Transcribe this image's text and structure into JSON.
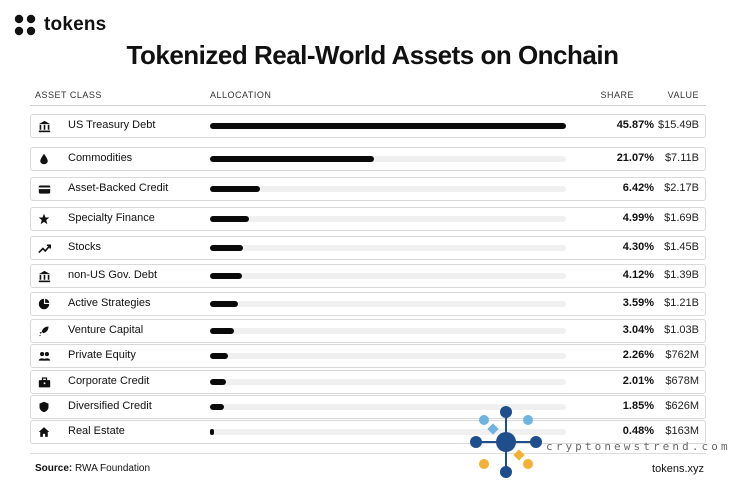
{
  "brand": {
    "name": "tokens"
  },
  "title": "Tokenized Real-World Assets on Onchain",
  "headers": {
    "asset_class": "ASSET CLASS",
    "allocation": "ALLOCATION",
    "share": "SHARE",
    "value": "VALUE"
  },
  "chart_data": {
    "type": "bar",
    "orientation": "horizontal",
    "categories": [
      "US Treasury Debt",
      "Commodities",
      "Asset-Backed Credit",
      "Specialty Finance",
      "Stocks",
      "non-US Gov. Debt",
      "Active Strategies",
      "Venture Capital",
      "Private Equity",
      "Corporate Credit",
      "Diversified Credit",
      "Real Estate"
    ],
    "values": [
      45.87,
      21.07,
      6.42,
      4.99,
      4.3,
      4.12,
      3.59,
      3.04,
      2.26,
      2.01,
      1.85,
      0.48
    ],
    "share_labels": [
      "45.87%",
      "21.07%",
      "6.42%",
      "4.99%",
      "4.30%",
      "4.12%",
      "3.59%",
      "3.04%",
      "2.26%",
      "2.01%",
      "1.85%",
      "0.48%"
    ],
    "value_labels": [
      "$15.49B",
      "$7.11B",
      "$2.17B",
      "$1.69B",
      "$1.45B",
      "$1.39B",
      "$1.21B",
      "$1.03B",
      "$762M",
      "$678M",
      "$626M",
      "$163M"
    ],
    "icons": [
      "bank-icon",
      "drop-icon",
      "card-icon",
      "star-icon",
      "trend-icon",
      "bank-icon",
      "pie-icon",
      "rocket-icon",
      "people-icon",
      "briefcase-icon",
      "shield-icon",
      "house-icon"
    ],
    "xlim": [
      0,
      45.87
    ],
    "bar_color": "#0a0a0a",
    "track_color": "#f0f0f0",
    "grid": false,
    "legend": "none"
  },
  "footer": {
    "source_label": "Source:",
    "source_value": "RWA Foundation",
    "site": "tokens.xyz"
  },
  "watermark": {
    "text": "cryptonewstrend.com",
    "colors": [
      "#1f4e8c",
      "#f2b134",
      "#6fb3e0"
    ]
  }
}
